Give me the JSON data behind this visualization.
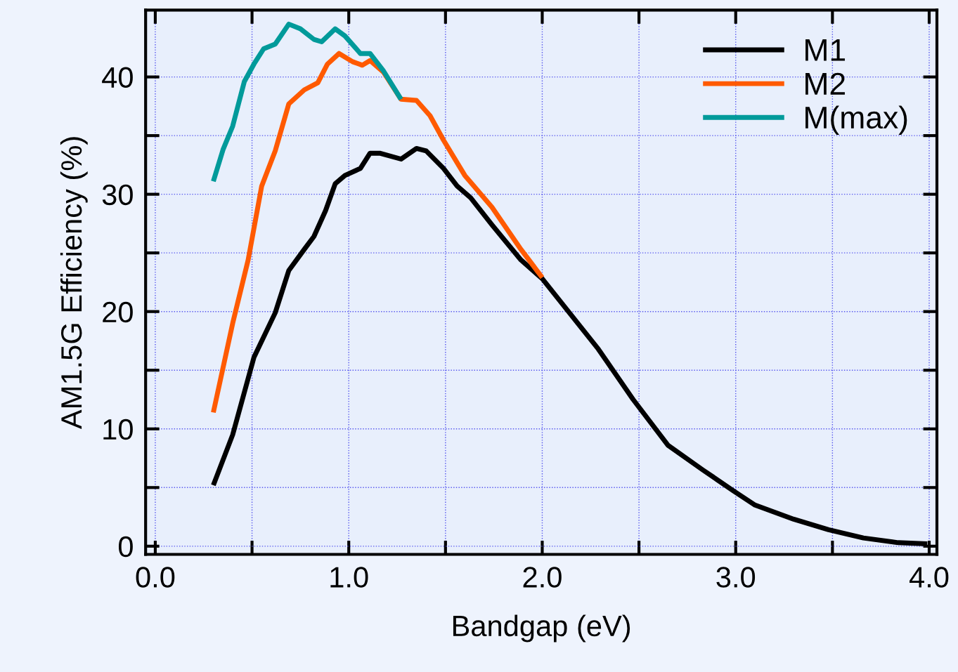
{
  "chart_data": {
    "type": "line",
    "xlabel": "Bandgap (eV)",
    "ylabel": "AM1.5G Efficiency (%)",
    "xlim": [
      -0.05,
      4.04
    ],
    "ylim": [
      -0.7,
      45.7
    ],
    "xticks": [
      {
        "value": 0,
        "label": "0.0"
      },
      {
        "value": 0.5,
        "label": null
      },
      {
        "value": 1,
        "label": "1.0"
      },
      {
        "value": 1.5,
        "label": null
      },
      {
        "value": 2,
        "label": "2.0"
      },
      {
        "value": 2.5,
        "label": null
      },
      {
        "value": 3,
        "label": "3.0"
      },
      {
        "value": 3.5,
        "label": null
      },
      {
        "value": 4,
        "label": "4.0"
      }
    ],
    "yticks": [
      0,
      {
        "value": 5,
        "label": null
      },
      10,
      {
        "value": 15,
        "label": null
      },
      20,
      {
        "value": 25,
        "label": null
      },
      30,
      {
        "value": 35,
        "label": null
      },
      40
    ],
    "grid": true,
    "legend": "top right",
    "line_style": "solid",
    "marker": "none",
    "series": [
      {
        "name": "M1",
        "color": "#000000",
        "x": [
          0.3,
          0.4,
          0.51,
          0.62,
          0.69,
          0.77,
          0.82,
          0.88,
          0.93,
          0.98,
          1.06,
          1.11,
          1.16,
          1.27,
          1.35,
          1.4,
          1.49,
          1.56,
          1.63,
          1.74,
          1.89,
          2.0,
          2.29,
          2.47,
          2.65,
          2.83,
          2.99,
          3.1,
          3.3,
          3.48,
          3.66,
          3.84,
          3.99
        ],
        "values": [
          5.2,
          9.5,
          16.1,
          19.9,
          23.5,
          25.3,
          26.4,
          28.6,
          30.9,
          31.6,
          32.2,
          33.5,
          33.5,
          33.0,
          33.9,
          33.7,
          32.2,
          30.7,
          29.7,
          27.4,
          24.4,
          22.8,
          16.8,
          12.5,
          8.6,
          6.5,
          4.7,
          3.5,
          2.3,
          1.4,
          0.7,
          0.3,
          0.2
        ]
      },
      {
        "name": "M2",
        "color": "#ff5a00",
        "x": [
          0.3,
          0.4,
          0.48,
          0.55,
          0.62,
          0.69,
          0.77,
          0.84,
          0.89,
          0.95,
          1.02,
          1.07,
          1.11,
          1.18,
          1.27,
          1.35,
          1.42,
          1.49,
          1.6,
          1.74,
          1.89,
          2.0
        ],
        "values": [
          11.4,
          19.0,
          24.4,
          30.7,
          33.7,
          37.7,
          38.9,
          39.5,
          41.1,
          42.0,
          41.3,
          41.0,
          41.4,
          40.4,
          38.1,
          38.0,
          36.7,
          34.6,
          31.6,
          28.9,
          25.3,
          22.9
        ]
      },
      {
        "name": "M(max)",
        "color": "#009a9a",
        "x": [
          0.3,
          0.35,
          0.4,
          0.46,
          0.51,
          0.56,
          0.62,
          0.69,
          0.75,
          0.82,
          0.86,
          0.93,
          0.98,
          1.06,
          1.11,
          1.18,
          1.27
        ],
        "values": [
          31.1,
          33.8,
          35.8,
          39.6,
          41.1,
          42.4,
          42.8,
          44.5,
          44.1,
          43.2,
          43.0,
          44.1,
          43.5,
          42.0,
          42.0,
          40.5,
          38.1
        ]
      }
    ]
  }
}
